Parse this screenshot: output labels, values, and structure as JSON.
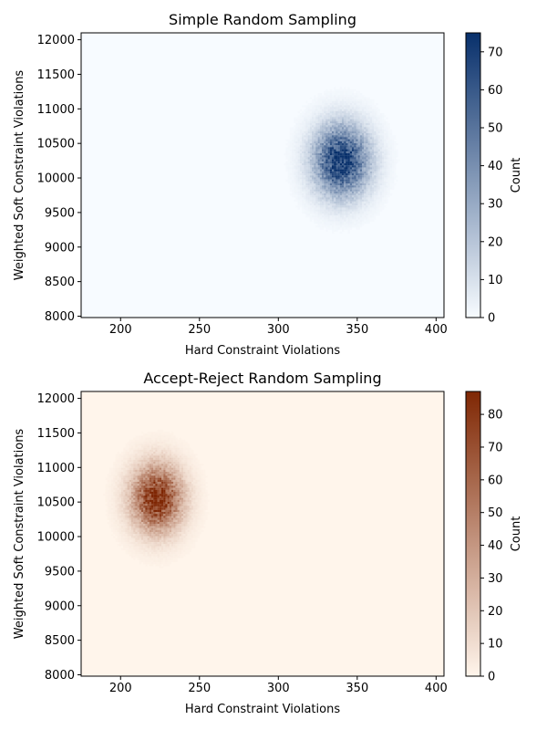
{
  "chart_data": [
    {
      "type": "heatmap",
      "title": "Simple Random Sampling",
      "xlabel": "Hard Constraint Violations",
      "ylabel": "Weighted Soft Constraint Violations",
      "xlim": [
        175,
        405
      ],
      "ylim": [
        7980,
        12100
      ],
      "xticks": [
        200,
        250,
        300,
        350,
        400
      ],
      "yticks": [
        8000,
        8500,
        9000,
        9500,
        10000,
        10500,
        11000,
        11500,
        12000
      ],
      "colorbar": {
        "label": "Count",
        "min": 0,
        "max": 75,
        "ticks": [
          0,
          10,
          20,
          30,
          40,
          50,
          60,
          70
        ]
      },
      "colormap": "Blues",
      "colormap_low": "#f7fbff",
      "colormap_high": "#08306b",
      "grid": false,
      "cluster": {
        "center_x": 340,
        "center_y": 10250,
        "spread_x": 12,
        "spread_y": 350,
        "peak_count": 75
      }
    },
    {
      "type": "heatmap",
      "title": "Accept-Reject Random Sampling",
      "xlabel": "Hard Constraint Violations",
      "ylabel": "Weighted Soft Constraint Violations",
      "xlim": [
        175,
        405
      ],
      "ylim": [
        7980,
        12100
      ],
      "xticks": [
        200,
        250,
        300,
        350,
        400
      ],
      "yticks": [
        8000,
        8500,
        9000,
        9500,
        10000,
        10500,
        11000,
        11500,
        12000
      ],
      "colorbar": {
        "label": "Count",
        "min": 0,
        "max": 87,
        "ticks": [
          0,
          10,
          20,
          30,
          40,
          50,
          60,
          70,
          80
        ]
      },
      "colormap": "Oranges",
      "colormap_low": "#fff5eb",
      "colormap_high": "#7f2704",
      "grid": false,
      "cluster": {
        "center_x": 223,
        "center_y": 10550,
        "spread_x": 11,
        "spread_y": 330,
        "peak_count": 87
      }
    }
  ]
}
